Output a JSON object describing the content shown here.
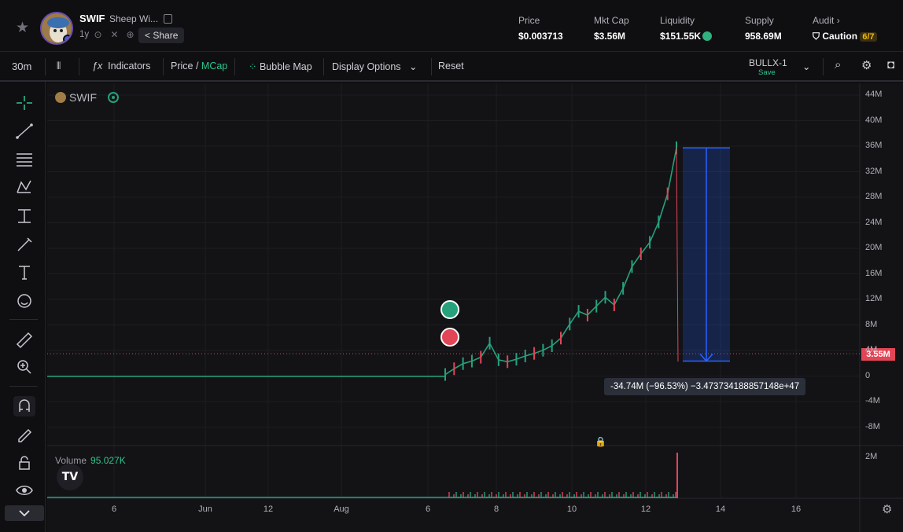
{
  "header": {
    "token_symbol": "SWIF",
    "token_name": "Sheep Wi...",
    "age": "1y",
    "share_label": "Share",
    "stats": [
      {
        "label": "Price",
        "value": "$0.003713"
      },
      {
        "label": "Mkt Cap",
        "value": "$3.56M"
      },
      {
        "label": "Liquidity",
        "value": "$151.55K"
      },
      {
        "label": "Supply",
        "value": "958.69M"
      }
    ],
    "audit": {
      "label": "Audit",
      "status": "Caution",
      "score": "6/7"
    },
    "colors": {
      "accent_green": "#2fc58d",
      "caution": "#f0b90b"
    }
  },
  "toolbar": {
    "interval": "30m",
    "indicators": "Indicators",
    "price_label": "Price",
    "mcap_label": "MCap",
    "bubble_map": "Bubble Map",
    "display_options": "Display Options",
    "reset": "Reset",
    "layout_name": "BULLX-1",
    "layout_save": "Save"
  },
  "chart": {
    "legend_symbol": "SWIF",
    "volume_label": "Volume",
    "volume_value": "95.027K",
    "measure_text": "-34.74M (−96.53%) −3.473734188857148e+47",
    "last_price_tag": "3.55M",
    "tradingview_logo": "TV"
  },
  "chart_data": {
    "type": "line",
    "title": "",
    "xlabel": "",
    "ylabel": "",
    "y_ticks": [
      "44M",
      "40M",
      "36M",
      "32M",
      "28M",
      "24M",
      "20M",
      "16M",
      "12M",
      "8M",
      "4M",
      "0",
      "-4M",
      "-8M"
    ],
    "volume_ticks": [
      "2M"
    ],
    "x_ticks": [
      "6",
      "Jun",
      "12",
      "Aug",
      "6",
      "8",
      "10",
      "12",
      "14",
      "16"
    ],
    "ylim": [
      -8000000,
      44000000
    ],
    "series": [
      {
        "values": [
          0,
          0,
          0,
          0,
          0,
          300000,
          1200000,
          2000000,
          2400000,
          3000000,
          5200000,
          2600000,
          2300000,
          2700000,
          3200000,
          3600000,
          4100000,
          4800000,
          6000000,
          8200000,
          10200000,
          9600000,
          11000000,
          12400000,
          11200000,
          13800000,
          17200000,
          19200000,
          21000000,
          24200000,
          28600000,
          35800000,
          3550000
        ]
      }
    ]
  }
}
